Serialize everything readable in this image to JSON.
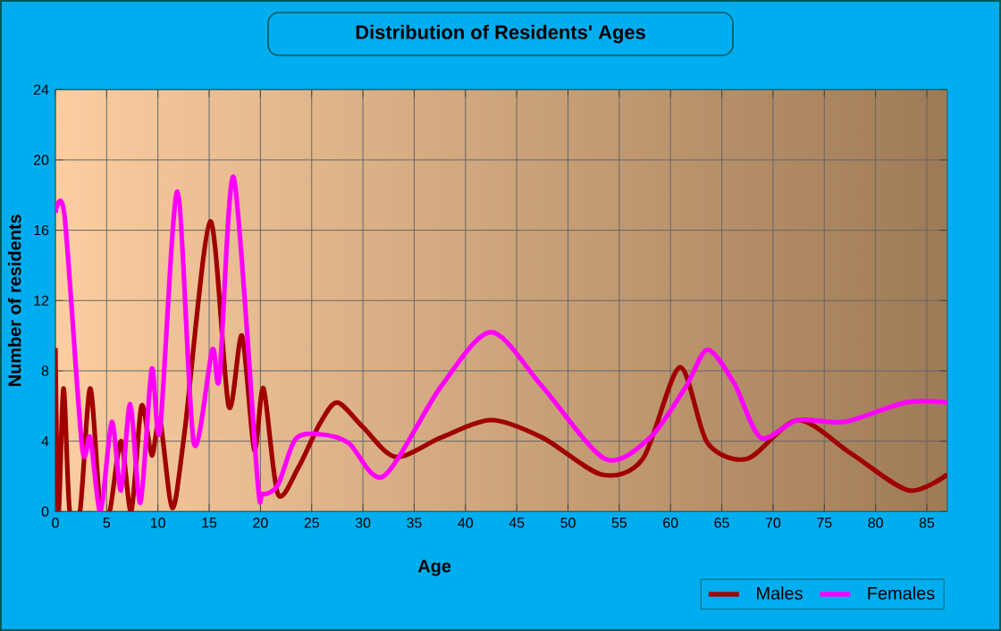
{
  "chart_data": {
    "type": "line",
    "title": "Distribution of Residents' Ages",
    "xlabel": "Age",
    "ylabel": "Number of residents",
    "xlim": [
      0,
      87
    ],
    "ylim": [
      0,
      24
    ],
    "xticks": [
      0,
      5,
      10,
      15,
      20,
      25,
      30,
      35,
      40,
      45,
      50,
      55,
      60,
      65,
      70,
      75,
      80,
      85
    ],
    "yticks": [
      0,
      4,
      8,
      12,
      16,
      20,
      24
    ],
    "grid": true,
    "legend": "bottom right",
    "marker": "none",
    "line_style": "solid",
    "series": [
      {
        "name": "Males",
        "color": "#a00000",
        "x": [
          0,
          0.3,
          0.8,
          1.4,
          2.4,
          3.4,
          4.4,
          5.3,
          6.4,
          7.4,
          8.4,
          9.4,
          10.2,
          11.4,
          12.6,
          15.1,
          16.9,
          18.2,
          19.4,
          20.3,
          21.7,
          23.7,
          25.8,
          27.5,
          30,
          33.2,
          37.6,
          42.5,
          47.5,
          53.3,
          57.3,
          60.9,
          63.6,
          67.5,
          72.4,
          77.6,
          83.2,
          87
        ],
        "values": [
          9.3,
          0,
          7,
          0,
          0,
          7,
          0,
          0,
          4,
          0,
          6,
          3.2,
          5.2,
          0.2,
          4.5,
          16.5,
          6,
          10,
          3.5,
          7,
          1,
          2.5,
          5,
          6.2,
          4.8,
          3.1,
          4.2,
          5.2,
          4.2,
          2.1,
          3,
          8.2,
          3.9,
          3,
          5.2,
          3.3,
          1.2,
          2.1
        ]
      },
      {
        "name": "Females",
        "color": "#ff00ff",
        "x": [
          0,
          0.9,
          2.6,
          3.4,
          4.4,
          5.5,
          6.4,
          7.3,
          8.3,
          9.4,
          10.2,
          11.9,
          13.5,
          15.3,
          16,
          17.4,
          19.7,
          20.2,
          21.7,
          23.4,
          25.7,
          28.6,
          32,
          37.6,
          42.5,
          47.5,
          53.6,
          58,
          61.5,
          63.6,
          66.2,
          68.8,
          72.4,
          77,
          82.9,
          87
        ],
        "values": [
          17,
          16.8,
          3.7,
          4.2,
          0,
          5.1,
          1.2,
          6.1,
          0.5,
          8.1,
          4.6,
          18.2,
          3.9,
          9.2,
          7.6,
          19,
          1.9,
          1,
          1.5,
          4.1,
          4.4,
          3.9,
          2,
          7.1,
          10.2,
          7.1,
          3,
          4.2,
          7.1,
          9.2,
          7.3,
          4.2,
          5.2,
          5.1,
          6.2,
          6.2
        ]
      }
    ]
  }
}
